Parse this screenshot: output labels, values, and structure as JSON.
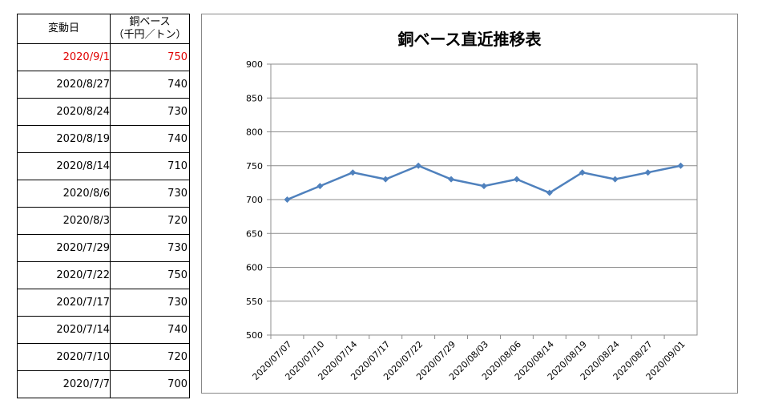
{
  "table": {
    "header_date": "変動日",
    "header_value_line1": "銅ベース",
    "header_value_line2": "（千円／トン）",
    "rows": [
      {
        "date": "2020/9/1",
        "value": "750"
      },
      {
        "date": "2020/8/27",
        "value": "740"
      },
      {
        "date": "2020/8/24",
        "value": "730"
      },
      {
        "date": "2020/8/19",
        "value": "740"
      },
      {
        "date": "2020/8/14",
        "value": "710"
      },
      {
        "date": "2020/8/6",
        "value": "730"
      },
      {
        "date": "2020/8/3",
        "value": "720"
      },
      {
        "date": "2020/7/29",
        "value": "730"
      },
      {
        "date": "2020/7/22",
        "value": "750"
      },
      {
        "date": "2020/7/17",
        "value": "730"
      },
      {
        "date": "2020/7/14",
        "value": "740"
      },
      {
        "date": "2020/7/10",
        "value": "720"
      },
      {
        "date": "2020/7/7",
        "value": "700"
      }
    ],
    "highlight_color": "#e00000"
  },
  "chart_data": {
    "type": "line",
    "title": "銅ベース直近推移表",
    "xlabel": "",
    "ylabel": "",
    "x": [
      "2020/07/07",
      "2020/07/10",
      "2020/07/14",
      "2020/07/17",
      "2020/07/22",
      "2020/07/29",
      "2020/08/03",
      "2020/08/06",
      "2020/08/14",
      "2020/08/19",
      "2020/08/24",
      "2020/08/27",
      "2020/09/01"
    ],
    "series": [
      {
        "values": [
          700,
          720,
          740,
          730,
          750,
          730,
          720,
          730,
          710,
          740,
          730,
          740,
          750
        ],
        "color": "#4f81bd",
        "marker": "diamond"
      }
    ],
    "ylim": [
      500,
      900
    ],
    "yticks": [
      500,
      550,
      600,
      650,
      700,
      750,
      800,
      850,
      900
    ],
    "grid": true,
    "legend": "none"
  }
}
